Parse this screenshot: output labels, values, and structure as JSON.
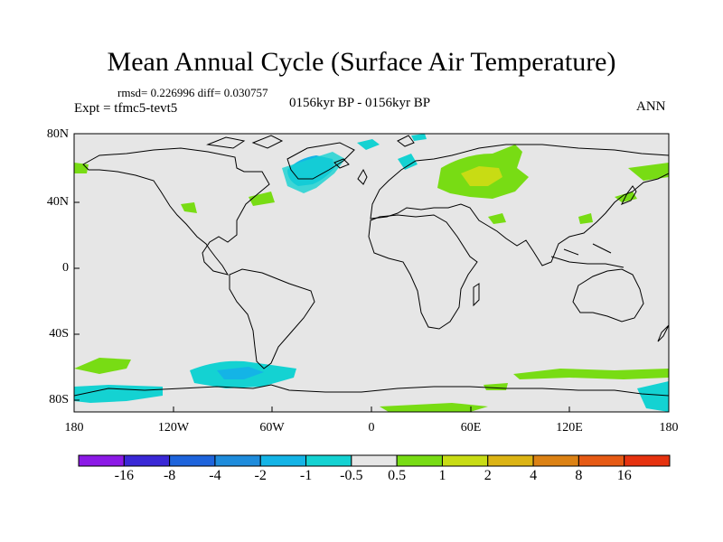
{
  "header": {
    "title": "Mean Annual Cycle (Surface Air Temperature)",
    "stats": "rmsd= 0.226996 diff= 0.030757",
    "expt": "Expt = tfmc5-tevt5",
    "period": "0156kyr BP - 0156kyr BP",
    "season": "ANN"
  },
  "axes": {
    "lat_labels": [
      "80N",
      "40N",
      "0",
      "40S",
      "80S"
    ],
    "lon_labels": [
      "180",
      "120W",
      "60W",
      "0",
      "60E",
      "120E",
      "180"
    ]
  },
  "colorbar": {
    "labels": [
      "-16",
      "-8",
      "-4",
      "-2",
      "-1",
      "-0.5",
      "0.5",
      "1",
      "2",
      "4",
      "8",
      "16"
    ],
    "colors": [
      "#8c1ae6",
      "#3a28d6",
      "#1e64dc",
      "#1e8cdc",
      "#14b4e6",
      "#14d2d2",
      "#e6e6e6",
      "#78dc14",
      "#c8dc14",
      "#dcb414",
      "#dc8214",
      "#e65a14",
      "#e6320f"
    ]
  },
  "colors": {
    "background": "#e6e6e6",
    "coast": "#000000"
  }
}
